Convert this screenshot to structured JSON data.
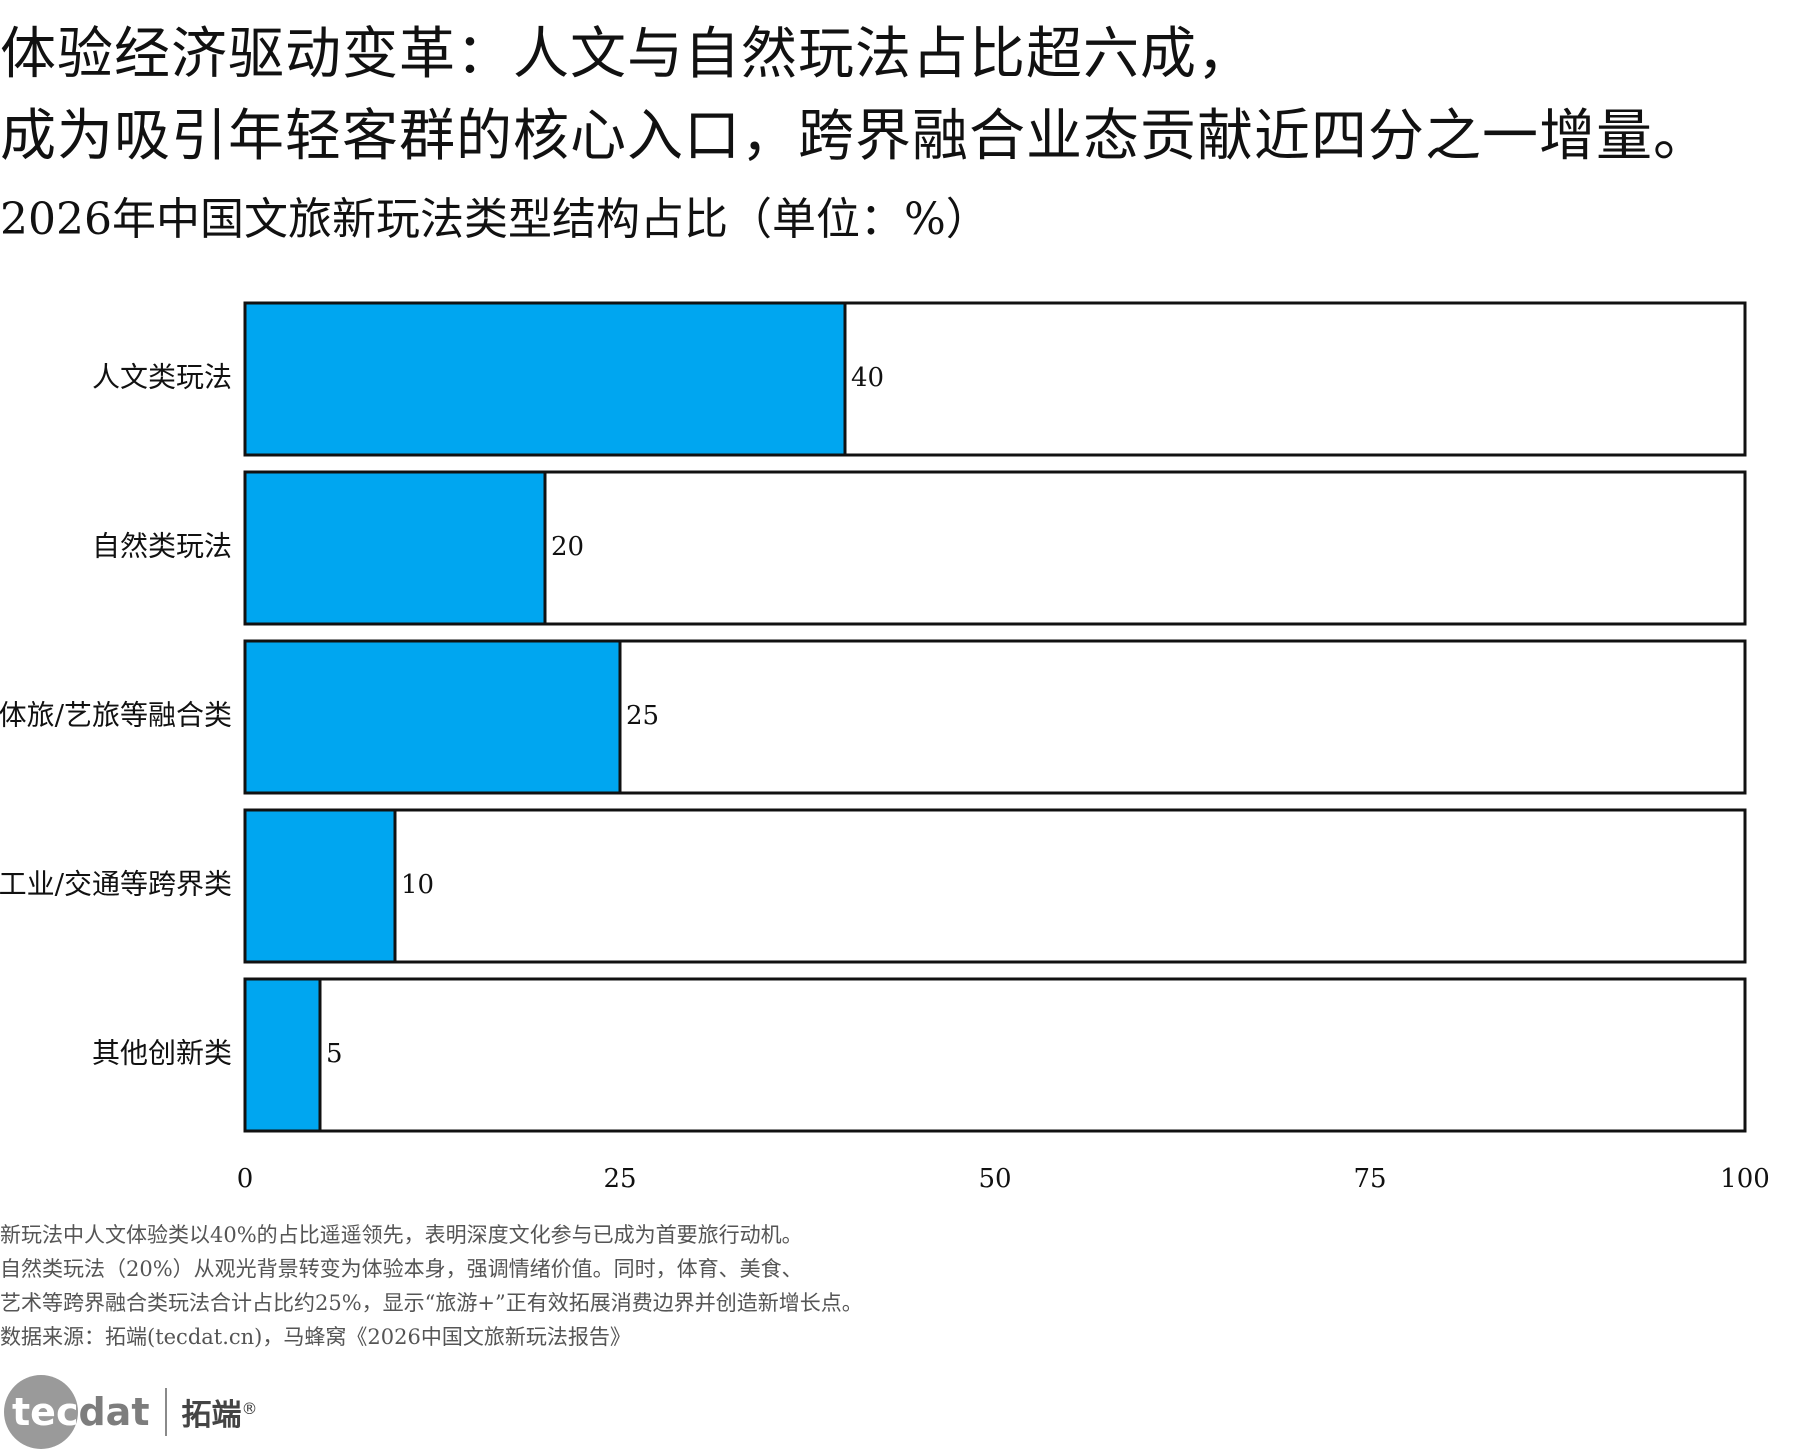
{
  "headline": {
    "line1": "体验经济驱动变革：人文与自然玩法占比超六成，",
    "line2": "成为吸引年轻客群的核心入口，跨界融合业态贡献近四分之一增量。"
  },
  "subtitle": "2026年中国文旅新玩法类型结构占比（单位：%）",
  "chart_data": {
    "type": "bar",
    "orientation": "horizontal",
    "categories": [
      "人文类玩法",
      "自然类玩法",
      "体旅/艺旅等融合类",
      "工业/交通等跨界类",
      "其他创新类"
    ],
    "values": [
      40,
      20,
      25,
      10,
      5
    ],
    "data_labels": [
      "40",
      "20",
      "25",
      "10",
      "5"
    ],
    "xlim": [
      0,
      100
    ],
    "x_ticks": [
      0,
      25,
      50,
      75,
      100
    ],
    "x_tick_labels": [
      "0",
      "25",
      "50",
      "75",
      "100"
    ],
    "bar_color": "#00A6F0",
    "track_color": "#ffffff",
    "grid": false,
    "legend": "none"
  },
  "notes": [
    "新玩法中人文体验类以40%的占比遥遥领先，表明深度文化参与已成为首要旅行动机。",
    "自然类玩法（20%）从观光背景转变为体验本身，强调情绪价值。同时，体育、美食、",
    "艺术等跨界融合类玩法合计占比约25%，显示“旅游+”正有效拓展消费边界并创造新增长点。",
    "数据来源：拓端(tecdat.cn)，马蜂窝《2026中国文旅新玩法报告》"
  ],
  "logo": {
    "word_part1": "tec",
    "word_part2": "dat",
    "cn": "拓端",
    "reg": "®"
  }
}
